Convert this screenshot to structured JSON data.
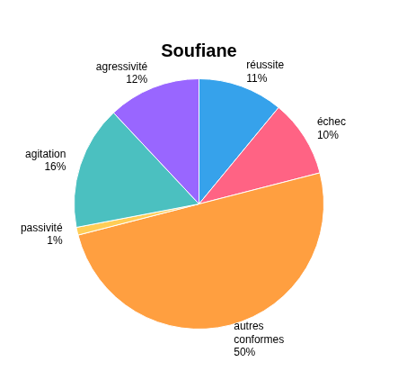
{
  "chart_data": {
    "type": "pie",
    "title": "Soufiane",
    "categories": [
      "réussite",
      "échec",
      "autres\nconformes",
      "passivité",
      "agitation",
      "agressivité"
    ],
    "values": [
      11,
      10,
      50,
      1,
      16,
      12
    ],
    "value_labels": [
      "11%",
      "10%",
      "50%",
      "1%",
      "16%",
      "12%"
    ],
    "data_labels": true
  }
}
